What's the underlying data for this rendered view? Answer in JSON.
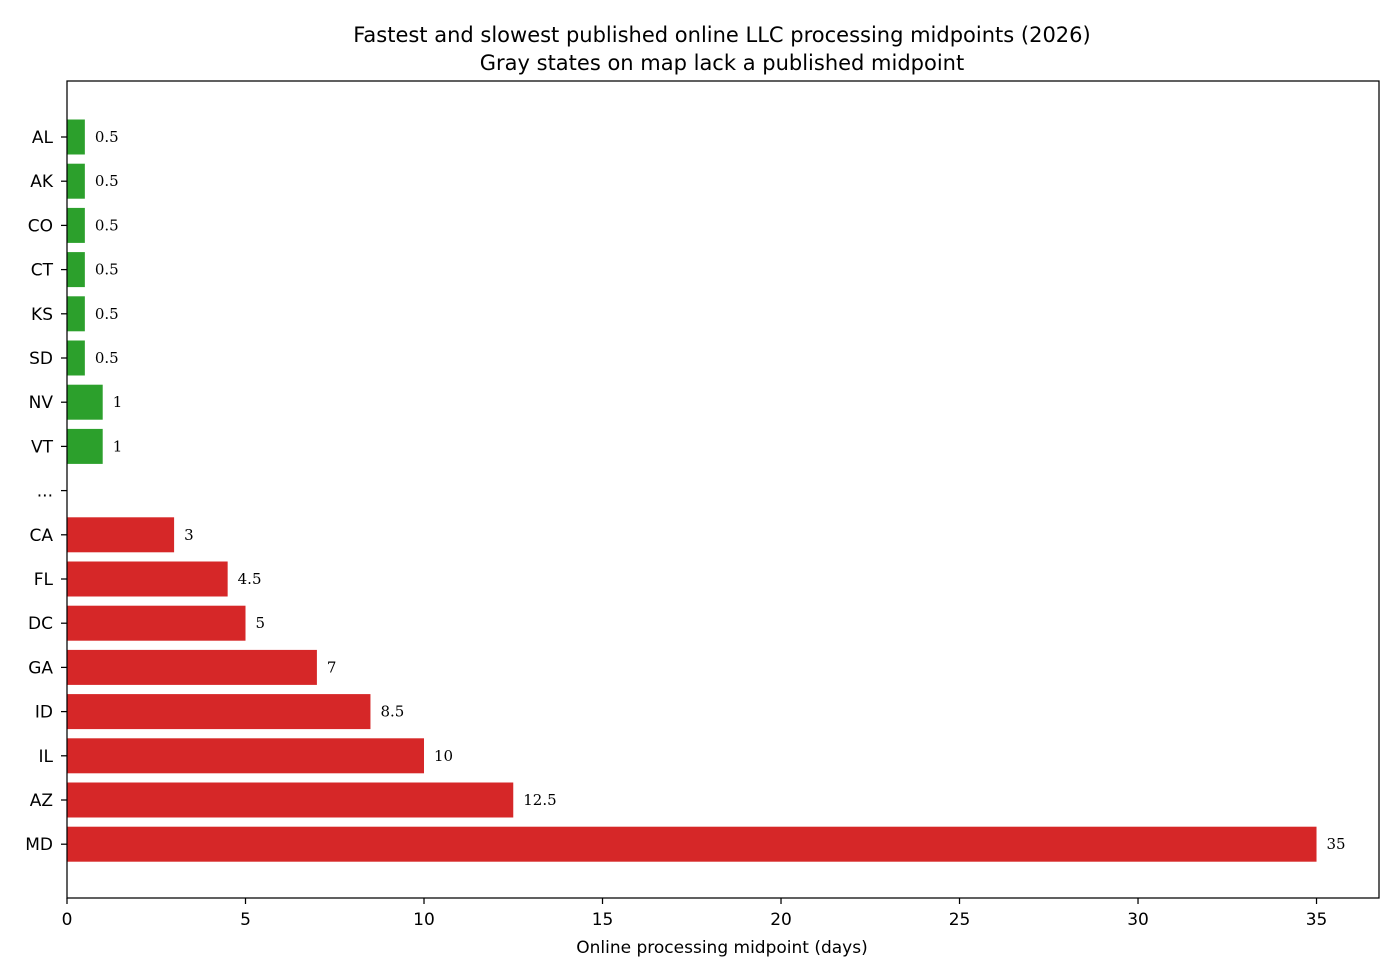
{
  "chart_data": {
    "type": "bar",
    "orientation": "horizontal",
    "title": "Fastest and slowest published online LLC processing midpoints (2026)",
    "subtitle": "Gray states on map lack a published midpoint",
    "xlabel": "Online processing midpoint (days)",
    "ylabel": "",
    "xlim": [
      0,
      36.75
    ],
    "xticks": [
      0,
      5,
      10,
      15,
      20,
      25,
      30,
      35
    ],
    "grid": false,
    "legend": "none",
    "categories": [
      "AL",
      "AK",
      "CO",
      "CT",
      "KS",
      "SD",
      "NV",
      "VT",
      "...",
      "CA",
      "FL",
      "DC",
      "GA",
      "ID",
      "IL",
      "AZ",
      "MD"
    ],
    "values": [
      0.5,
      0.5,
      0.5,
      0.5,
      0.5,
      0.5,
      1,
      1,
      null,
      3,
      4.5,
      5,
      7,
      8.5,
      10,
      12.5,
      35
    ],
    "value_labels": [
      "0.5",
      "0.5",
      "0.5",
      "0.5",
      "0.5",
      "0.5",
      "1",
      "1",
      "",
      "3",
      "4.5",
      "5",
      "7",
      "8.5",
      "10",
      "12.5",
      "35"
    ],
    "groups": [
      "fastest",
      "fastest",
      "fastest",
      "fastest",
      "fastest",
      "fastest",
      "fastest",
      "fastest",
      "gap",
      "slowest",
      "slowest",
      "slowest",
      "slowest",
      "slowest",
      "slowest",
      "slowest",
      "slowest"
    ],
    "colors": {
      "fastest": "#2ca02c",
      "slowest": "#d62728"
    }
  }
}
